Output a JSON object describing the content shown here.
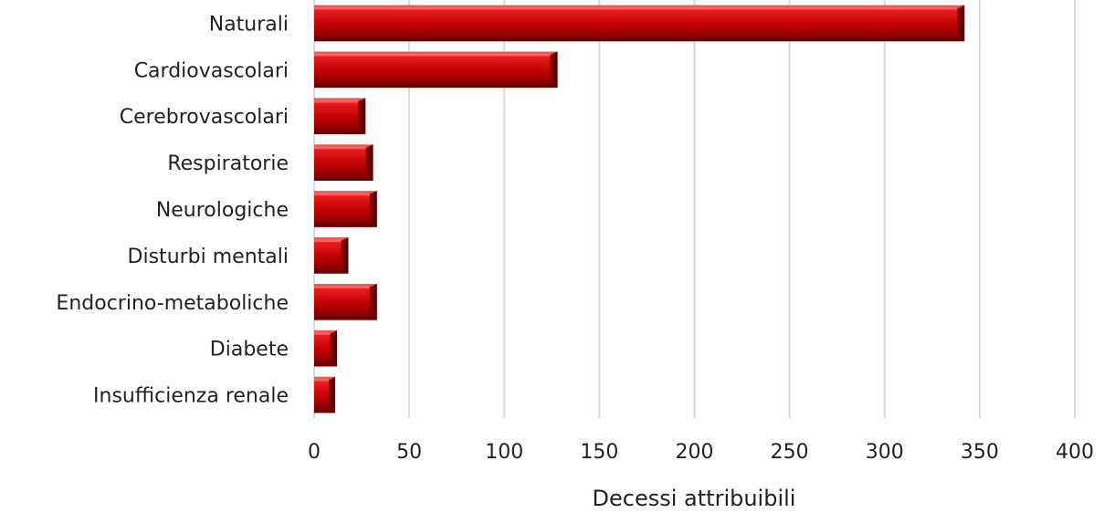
{
  "chart_data": {
    "type": "bar",
    "orientation": "horizontal",
    "categories": [
      "Naturali",
      "Cardiovascolari",
      "Cerebrovascolari",
      "Respiratorie",
      "Neurologiche",
      "Disturbi mentali",
      "Endocrino-metaboliche",
      "Diabete",
      "Insufficienza renale"
    ],
    "values": [
      342,
      128,
      27,
      31,
      33,
      18,
      33,
      12,
      11
    ],
    "title": "",
    "xlabel": "Decessi attribuibili",
    "ylabel": "",
    "xlim": [
      0,
      400
    ],
    "xticks": [
      "0",
      "50",
      "100",
      "150",
      "200",
      "250",
      "300",
      "350",
      "400"
    ],
    "grid": "vertical",
    "legend": "none",
    "bar_color": "#c00000"
  }
}
